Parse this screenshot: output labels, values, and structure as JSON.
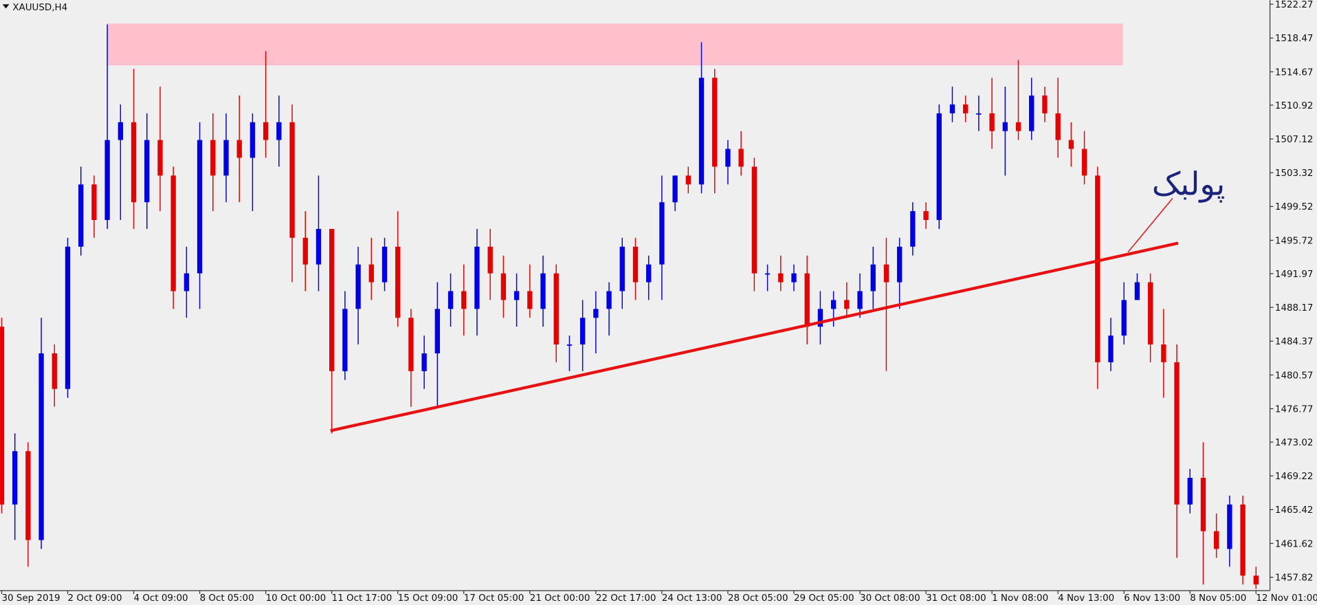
{
  "chart_data": {
    "type": "candlestick",
    "symbol": "XAUUSD,H4",
    "up_color": "#0000e6",
    "down_color": "#e60000",
    "ylim": [
      1456.31,
      1522.74
    ],
    "yticks": [
      1522.27,
      1518.47,
      1514.67,
      1510.92,
      1507.12,
      1503.32,
      1499.52,
      1495.72,
      1491.97,
      1488.17,
      1484.37,
      1480.57,
      1476.77,
      1473.02,
      1469.22,
      1465.42,
      1461.62,
      1457.82
    ],
    "categories": [
      "30 Sep 2019",
      null,
      null,
      null,
      null,
      "2 Oct 09:00",
      null,
      null,
      null,
      null,
      "4 Oct 09:00",
      null,
      null,
      null,
      null,
      "8 Oct 05:00",
      null,
      null,
      null,
      null,
      "10 Oct 00:00",
      null,
      null,
      null,
      null,
      "11 Oct 17:00",
      null,
      null,
      null,
      null,
      "15 Oct 09:00",
      null,
      null,
      null,
      null,
      "17 Oct 05:00",
      null,
      null,
      null,
      null,
      "21 Oct 00:00",
      null,
      null,
      null,
      null,
      "22 Oct 17:00",
      null,
      null,
      null,
      null,
      "24 Oct 13:00",
      null,
      null,
      null,
      null,
      "28 Oct 05:00",
      null,
      null,
      null,
      null,
      "29 Oct 05:00",
      null,
      null,
      null,
      null,
      "30 Oct 08:00",
      null,
      null,
      null,
      null,
      "31 Oct 08:00",
      null,
      null,
      null,
      null,
      "1 Nov 08:00",
      null,
      null,
      null,
      null,
      "4 Nov 13:00",
      null,
      null,
      null,
      null,
      "6 Nov 13:00",
      null,
      null,
      null,
      null,
      "8 Nov 05:00",
      null,
      null,
      null,
      null,
      "12 Nov 01:00"
    ],
    "open": [
      1486,
      1466,
      1472,
      1462,
      1483,
      1479,
      1495,
      1502,
      1498,
      1507,
      1509,
      1500,
      1507,
      1503,
      1490,
      1492,
      1507,
      1503,
      1507,
      1505,
      1509,
      1507,
      1509,
      1496,
      1493,
      1497,
      1481,
      1488,
      1493,
      1491,
      1495,
      1487,
      1481,
      1483,
      1488,
      1490,
      1488,
      1495,
      1492,
      1489,
      1490,
      1488,
      1492,
      1484,
      1484,
      1487,
      1488,
      1490,
      1495,
      1491,
      1493,
      1500,
      1503,
      1502,
      1514,
      1504,
      1506,
      1504,
      1492,
      1492,
      1491,
      1492,
      1486,
      1488,
      1489,
      1488,
      1490,
      1493,
      1491,
      1495,
      1499,
      1498,
      1510,
      1511,
      1510,
      1510,
      1508,
      1509,
      1508,
      1512,
      1510,
      1507,
      1506,
      1503,
      1482,
      1485,
      1489,
      1491,
      1484,
      1482,
      1466,
      1469,
      1463,
      1461,
      1466,
      1458
    ],
    "high": [
      1487,
      1474,
      1473,
      1487,
      1484,
      1496,
      1504,
      1503,
      1520,
      1511,
      1515,
      1510,
      1513,
      1504,
      1495,
      1509,
      1510,
      1510,
      1512,
      1510,
      1517,
      1512,
      1511,
      1499,
      1503,
      1497,
      1490,
      1495,
      1496,
      1496,
      1499,
      1488,
      1485,
      1491,
      1492,
      1493,
      1497,
      1497,
      1494,
      1492,
      1493,
      1494,
      1493,
      1485,
      1489,
      1490,
      1491,
      1496,
      1496,
      1494,
      1503,
      1503,
      1504,
      1518,
      1515,
      1507,
      1508,
      1505,
      1493,
      1494,
      1493,
      1494,
      1490,
      1490,
      1491,
      1492,
      1495,
      1496,
      1496,
      1500,
      1500,
      1511,
      1513,
      1512,
      1512,
      1514,
      1513,
      1516,
      1514,
      1513,
      1514,
      1509,
      1508,
      1504,
      1487,
      1491,
      1492,
      1492,
      1488,
      1484,
      1470,
      1473,
      1465,
      1467,
      1467,
      1459
    ],
    "low": [
      1465,
      1462,
      1459,
      1461,
      1477,
      1478,
      1494,
      1496,
      1497,
      1498,
      1497,
      1497,
      1499,
      1488,
      1487,
      1488,
      1499,
      1500,
      1500,
      1499,
      1505,
      1504,
      1491,
      1490,
      1490,
      1474,
      1480,
      1484,
      1489,
      1490,
      1486,
      1477,
      1479,
      1477,
      1486,
      1485,
      1485,
      1489,
      1487,
      1486,
      1487,
      1486,
      1482,
      1481,
      1481,
      1483,
      1485,
      1488,
      1489,
      1489,
      1489,
      1499,
      1501,
      1501,
      1501,
      1502,
      1503,
      1490,
      1490,
      1490,
      1490,
      1484,
      1484,
      1486,
      1487,
      1487,
      1488,
      1481,
      1488,
      1494,
      1497,
      1497,
      1509,
      1509,
      1508,
      1506,
      1503,
      1507,
      1507,
      1509,
      1505,
      1504,
      1502,
      1479,
      1481,
      1484,
      1489,
      1482,
      1478,
      1460,
      1465,
      1457,
      1460,
      1459,
      1457,
      1456.5
    ],
    "close": [
      1466,
      1472,
      1462,
      1483,
      1479,
      1495,
      1502,
      1498,
      1507,
      1509,
      1500,
      1507,
      1503,
      1490,
      1492,
      1507,
      1503,
      1507,
      1505,
      1509,
      1507,
      1509,
      1496,
      1493,
      1497,
      1481,
      1488,
      1493,
      1491,
      1495,
      1487,
      1481,
      1483,
      1488,
      1490,
      1488,
      1495,
      1492,
      1489,
      1490,
      1488,
      1492,
      1484,
      1484,
      1487,
      1488,
      1490,
      1495,
      1491,
      1493,
      1500,
      1503,
      1502,
      1514,
      1504,
      1506,
      1504,
      1492,
      1492,
      1491,
      1492,
      1486,
      1488,
      1489,
      1488,
      1490,
      1493,
      1491,
      1495,
      1499,
      1498,
      1510,
      1511,
      1510,
      1510,
      1508,
      1509,
      1508,
      1512,
      1510,
      1507,
      1506,
      1503,
      1482,
      1485,
      1489,
      1491,
      1484,
      1482,
      1466,
      1469,
      1463,
      1461,
      1466,
      1458,
      1457
    ],
    "zone": {
      "x": [
        7.95,
        84.9
      ],
      "y": [
        1515.4,
        1520.1
      ],
      "color": "#ffc0cb"
    },
    "trendline": {
      "x": [
        24.9,
        89.1
      ],
      "y": [
        1474.3,
        1495.4
      ],
      "color": "#e81010"
    },
    "annotation": {
      "text": "پولبک",
      "color": "#1a237e"
    }
  }
}
